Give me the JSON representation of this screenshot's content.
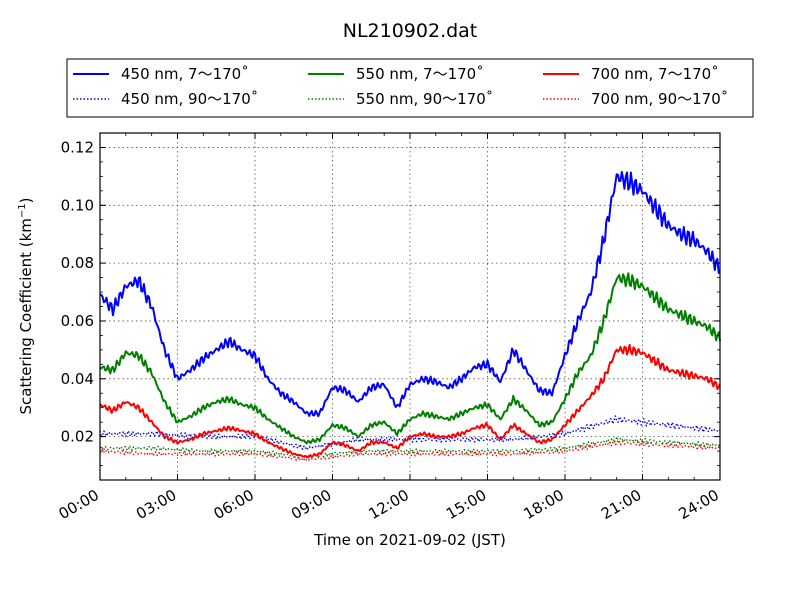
{
  "chart_data": {
    "type": "line",
    "title": "NL210902.dat",
    "xlabel": "Time on 2021-09-02 (JST)",
    "ylabel_main": "Scattering Coefficient (km",
    "ylabel_sup": "−1",
    "ylabel_end": ")",
    "xlim": [
      "00:00",
      "24:00"
    ],
    "ylim": [
      0.005,
      0.125
    ],
    "x_ticks": [
      "00:00",
      "03:00",
      "06:00",
      "09:00",
      "12:00",
      "15:00",
      "18:00",
      "21:00",
      "24:00"
    ],
    "y_ticks": [
      "0.02",
      "0.04",
      "0.06",
      "0.08",
      "0.10",
      "0.12"
    ],
    "y_tick_values": [
      0.02,
      0.04,
      0.06,
      0.08,
      0.1,
      0.12
    ],
    "grid": true,
    "legend_position": "top (above plot)",
    "series": [
      {
        "name": "450 nm, 7～170˚",
        "color": "#0000ff",
        "style": "solid",
        "x": [
          "00:00",
          "00:30",
          "01:00",
          "01:30",
          "02:00",
          "02:30",
          "03:00",
          "03:30",
          "04:00",
          "04:30",
          "05:00",
          "05:30",
          "06:00",
          "06:30",
          "07:00",
          "07:30",
          "08:00",
          "08:30",
          "09:00",
          "09:30",
          "10:00",
          "10:30",
          "11:00",
          "11:30",
          "12:00",
          "12:30",
          "13:00",
          "13:30",
          "14:00",
          "14:30",
          "15:00",
          "15:30",
          "16:00",
          "16:30",
          "17:00",
          "17:30",
          "18:00",
          "18:30",
          "19:00",
          "19:30",
          "20:00",
          "20:30",
          "21:00",
          "21:30",
          "22:00",
          "22:30",
          "23:00",
          "23:30",
          "24:00"
        ],
        "values": [
          0.069,
          0.064,
          0.072,
          0.074,
          0.065,
          0.05,
          0.04,
          0.043,
          0.047,
          0.05,
          0.053,
          0.05,
          0.048,
          0.04,
          0.035,
          0.032,
          0.028,
          0.028,
          0.037,
          0.036,
          0.032,
          0.037,
          0.038,
          0.03,
          0.038,
          0.04,
          0.039,
          0.037,
          0.04,
          0.044,
          0.045,
          0.039,
          0.05,
          0.043,
          0.036,
          0.035,
          0.048,
          0.06,
          0.07,
          0.088,
          0.11,
          0.108,
          0.105,
          0.099,
          0.093,
          0.09,
          0.088,
          0.084,
          0.078
        ]
      },
      {
        "name": "450 nm, 90～170˚",
        "color": "#0000ff",
        "style": "dotted",
        "x": [
          "00:00",
          "02:00",
          "04:00",
          "06:00",
          "08:00",
          "10:00",
          "12:00",
          "14:00",
          "16:00",
          "18:00",
          "20:00",
          "22:00",
          "24:00"
        ],
        "values": [
          0.021,
          0.021,
          0.02,
          0.02,
          0.016,
          0.019,
          0.019,
          0.019,
          0.019,
          0.021,
          0.026,
          0.024,
          0.022
        ]
      },
      {
        "name": "550 nm, 7～170˚",
        "color": "#008000",
        "style": "solid",
        "x": [
          "00:00",
          "00:30",
          "01:00",
          "01:30",
          "02:00",
          "02:30",
          "03:00",
          "03:30",
          "04:00",
          "04:30",
          "05:00",
          "05:30",
          "06:00",
          "06:30",
          "07:00",
          "07:30",
          "08:00",
          "08:30",
          "09:00",
          "09:30",
          "10:00",
          "10:30",
          "11:00",
          "11:30",
          "12:00",
          "12:30",
          "13:00",
          "13:30",
          "14:00",
          "14:30",
          "15:00",
          "15:30",
          "16:00",
          "16:30",
          "17:00",
          "17:30",
          "18:00",
          "18:30",
          "19:00",
          "19:30",
          "20:00",
          "20:30",
          "21:00",
          "21:30",
          "22:00",
          "22:30",
          "23:00",
          "23:30",
          "24:00"
        ],
        "values": [
          0.044,
          0.043,
          0.049,
          0.048,
          0.042,
          0.032,
          0.025,
          0.027,
          0.03,
          0.032,
          0.033,
          0.031,
          0.03,
          0.026,
          0.023,
          0.02,
          0.018,
          0.019,
          0.024,
          0.023,
          0.02,
          0.024,
          0.025,
          0.021,
          0.026,
          0.028,
          0.027,
          0.026,
          0.028,
          0.03,
          0.031,
          0.026,
          0.033,
          0.029,
          0.024,
          0.025,
          0.033,
          0.042,
          0.048,
          0.06,
          0.075,
          0.074,
          0.072,
          0.068,
          0.064,
          0.062,
          0.06,
          0.058,
          0.054
        ]
      },
      {
        "name": "550 nm, 90～170˚",
        "color": "#008000",
        "style": "dotted",
        "x": [
          "00:00",
          "02:00",
          "04:00",
          "06:00",
          "08:00",
          "10:00",
          "12:00",
          "14:00",
          "16:00",
          "18:00",
          "20:00",
          "22:00",
          "24:00"
        ],
        "values": [
          0.016,
          0.016,
          0.015,
          0.015,
          0.013,
          0.015,
          0.015,
          0.015,
          0.015,
          0.016,
          0.019,
          0.018,
          0.017
        ]
      },
      {
        "name": "700 nm, 7～170˚",
        "color": "#ff0000",
        "style": "solid",
        "x": [
          "00:00",
          "00:30",
          "01:00",
          "01:30",
          "02:00",
          "02:30",
          "03:00",
          "03:30",
          "04:00",
          "04:30",
          "05:00",
          "05:30",
          "06:00",
          "06:30",
          "07:00",
          "07:30",
          "08:00",
          "08:30",
          "09:00",
          "09:30",
          "10:00",
          "10:30",
          "11:00",
          "11:30",
          "12:00",
          "12:30",
          "13:00",
          "13:30",
          "14:00",
          "14:30",
          "15:00",
          "15:30",
          "16:00",
          "16:30",
          "17:00",
          "17:30",
          "18:00",
          "18:30",
          "19:00",
          "19:30",
          "20:00",
          "20:30",
          "21:00",
          "21:30",
          "22:00",
          "22:30",
          "23:00",
          "23:30",
          "24:00"
        ],
        "values": [
          0.031,
          0.029,
          0.032,
          0.03,
          0.025,
          0.02,
          0.018,
          0.019,
          0.021,
          0.022,
          0.023,
          0.022,
          0.021,
          0.018,
          0.016,
          0.014,
          0.013,
          0.014,
          0.018,
          0.017,
          0.015,
          0.018,
          0.018,
          0.016,
          0.02,
          0.021,
          0.02,
          0.02,
          0.021,
          0.023,
          0.024,
          0.019,
          0.024,
          0.021,
          0.018,
          0.019,
          0.024,
          0.029,
          0.034,
          0.04,
          0.05,
          0.05,
          0.049,
          0.046,
          0.043,
          0.042,
          0.041,
          0.04,
          0.037
        ]
      },
      {
        "name": "700 nm, 90～170˚",
        "color": "#ff0000",
        "style": "dotted",
        "x": [
          "00:00",
          "02:00",
          "04:00",
          "06:00",
          "08:00",
          "10:00",
          "12:00",
          "14:00",
          "16:00",
          "18:00",
          "20:00",
          "22:00",
          "24:00"
        ],
        "values": [
          0.015,
          0.014,
          0.014,
          0.014,
          0.012,
          0.014,
          0.014,
          0.014,
          0.014,
          0.015,
          0.018,
          0.017,
          0.016
        ]
      }
    ]
  }
}
